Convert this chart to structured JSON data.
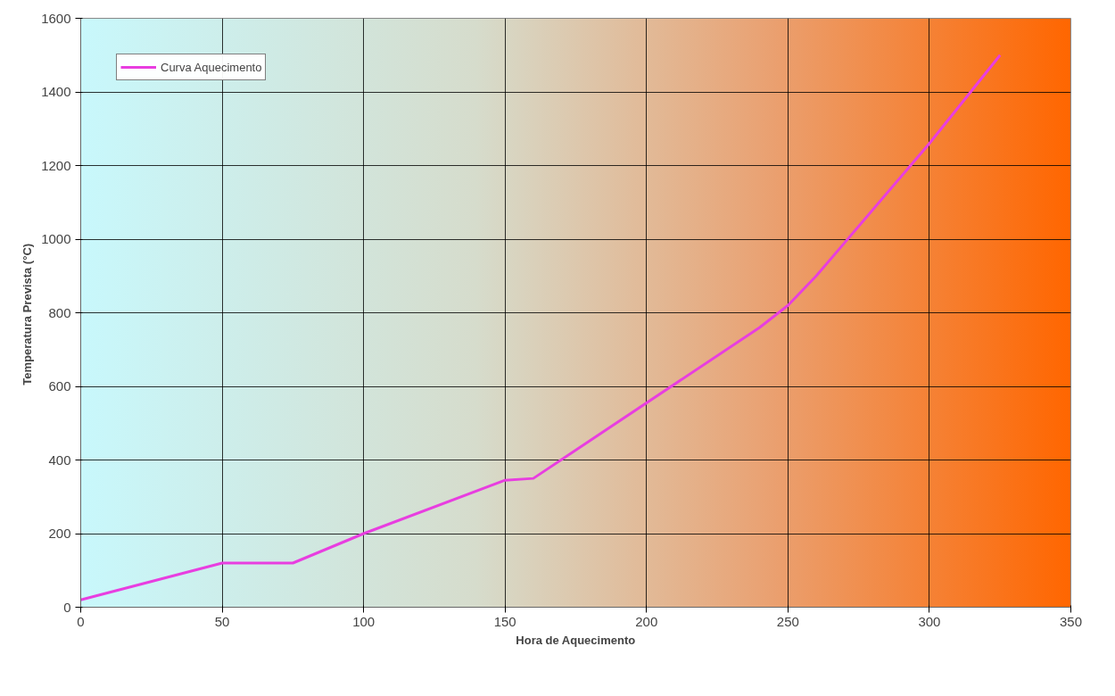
{
  "chart_data": {
    "type": "line",
    "xlabel": "Hora de Aquecimento",
    "ylabel": "Temperatura Prevista  (°C)",
    "xlim": [
      0,
      350
    ],
    "ylim": [
      0,
      1600
    ],
    "xticks": [
      0,
      50,
      100,
      150,
      200,
      250,
      300,
      350
    ],
    "yticks": [
      0,
      200,
      400,
      600,
      800,
      1000,
      1200,
      1400,
      1600
    ],
    "grid": true,
    "legend": "top left",
    "marker": "none",
    "line_style": "solid",
    "series": [
      {
        "name": "Curva Aquecimento",
        "color": "#e83ee0",
        "x": [
          0,
          50,
          75,
          100,
          150,
          160,
          240,
          250,
          260,
          270,
          300,
          325
        ],
        "values": [
          20,
          120,
          120,
          200,
          345,
          350,
          760,
          820,
          900,
          990,
          1260,
          1500
        ]
      }
    ]
  }
}
